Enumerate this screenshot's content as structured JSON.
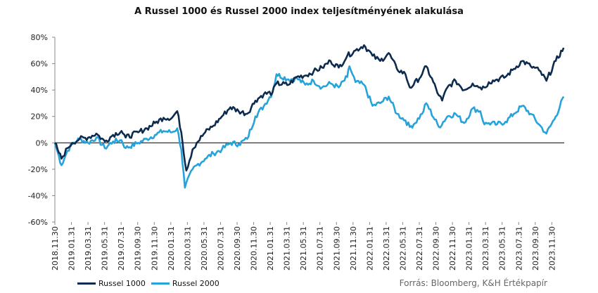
{
  "chart_data": {
    "type": "line",
    "title": "A Russel 1000 és Russel 2000 index teljesítményének alakulása",
    "xlabel": "",
    "ylabel": "",
    "ylim": [
      -60,
      80
    ],
    "yticks": [
      -60,
      -40,
      -20,
      0,
      20,
      40,
      60,
      80
    ],
    "ytick_labels": [
      "-60%",
      "-40%",
      "-20%",
      "0%",
      "20%",
      "40%",
      "60%",
      "80%"
    ],
    "xlim": [
      "2018-11-30",
      "2023-12-31"
    ],
    "x_tick_labels": [
      "2018.11.30",
      "2019.01.31",
      "2019.03.31",
      "2019.05.31",
      "2019.07.31",
      "2019.09.30",
      "2019.11.30",
      "2020.01.31",
      "2020.03.31",
      "2020.05.31",
      "2020.07.31",
      "2020.09.30",
      "2020.11.30",
      "2021.01.31",
      "2021.03.31",
      "2021.05.31",
      "2021.07.31",
      "2021.09.30",
      "2021.11.30",
      "2022.01.31",
      "2022.03.31",
      "2022.05.31",
      "2022.07.31",
      "2022.09.30",
      "2022.11.30",
      "2023.01.31",
      "2023.03.31",
      "2023.05.31",
      "2023.07.31",
      "2023.09.30",
      "2023.11.30"
    ],
    "grid": false,
    "legend_position": "bottom-left",
    "source": "Forrás: Bloomberg, K&H Értékpapír",
    "series": [
      {
        "name": "Russel 1000",
        "color": "#0d2b4e",
        "points": [
          [
            "2018-11-30",
            0
          ],
          [
            "2018-12-10",
            -5
          ],
          [
            "2018-12-24",
            -12
          ],
          [
            "2019-01-15",
            -4
          ],
          [
            "2019-02-01",
            0
          ],
          [
            "2019-02-28",
            3
          ],
          [
            "2019-03-31",
            4
          ],
          [
            "2019-04-30",
            7
          ],
          [
            "2019-05-31",
            1
          ],
          [
            "2019-06-30",
            6
          ],
          [
            "2019-07-31",
            9
          ],
          [
            "2019-08-15",
            4
          ],
          [
            "2019-09-30",
            8
          ],
          [
            "2019-10-31",
            11
          ],
          [
            "2019-11-30",
            15
          ],
          [
            "2019-12-31",
            19
          ],
          [
            "2020-01-31",
            19
          ],
          [
            "2020-02-19",
            24
          ],
          [
            "2020-03-05",
            8
          ],
          [
            "2020-03-23",
            -21
          ],
          [
            "2020-04-15",
            -5
          ],
          [
            "2020-04-30",
            0
          ],
          [
            "2020-05-31",
            8
          ],
          [
            "2020-06-30",
            13
          ],
          [
            "2020-07-31",
            20
          ],
          [
            "2020-08-31",
            27
          ],
          [
            "2020-09-30",
            24
          ],
          [
            "2020-10-31",
            22
          ],
          [
            "2020-11-30",
            32
          ],
          [
            "2020-12-31",
            37
          ],
          [
            "2021-01-31",
            38
          ],
          [
            "2021-02-15",
            45
          ],
          [
            "2021-03-31",
            44
          ],
          [
            "2021-04-30",
            50
          ],
          [
            "2021-05-31",
            51
          ],
          [
            "2021-06-30",
            54
          ],
          [
            "2021-07-31",
            57
          ],
          [
            "2021-08-31",
            62
          ],
          [
            "2021-09-30",
            57
          ],
          [
            "2021-10-31",
            66
          ],
          [
            "2021-11-30",
            70
          ],
          [
            "2021-12-31",
            74
          ],
          [
            "2022-01-31",
            66
          ],
          [
            "2022-02-28",
            62
          ],
          [
            "2022-03-31",
            68
          ],
          [
            "2022-04-30",
            56
          ],
          [
            "2022-05-31",
            52
          ],
          [
            "2022-06-16",
            42
          ],
          [
            "2022-06-30",
            44
          ],
          [
            "2022-07-31",
            52
          ],
          [
            "2022-08-15",
            58
          ],
          [
            "2022-09-30",
            36
          ],
          [
            "2022-10-12",
            32
          ],
          [
            "2022-10-31",
            42
          ],
          [
            "2022-11-30",
            47
          ],
          [
            "2022-12-31",
            40
          ],
          [
            "2023-01-31",
            45
          ],
          [
            "2023-02-28",
            42
          ],
          [
            "2023-03-15",
            42
          ],
          [
            "2023-03-31",
            46
          ],
          [
            "2023-04-30",
            48
          ],
          [
            "2023-05-31",
            50
          ],
          [
            "2023-06-30",
            56
          ],
          [
            "2023-07-31",
            62
          ],
          [
            "2023-08-31",
            58
          ],
          [
            "2023-09-30",
            55
          ],
          [
            "2023-10-27",
            47
          ],
          [
            "2023-11-30",
            62
          ],
          [
            "2023-12-29",
            72
          ]
        ]
      },
      {
        "name": "Russel 2000",
        "color": "#27a3d9",
        "points": [
          [
            "2018-11-30",
            0
          ],
          [
            "2018-12-10",
            -7
          ],
          [
            "2018-12-24",
            -17
          ],
          [
            "2019-01-15",
            -6
          ],
          [
            "2019-02-01",
            -1
          ],
          [
            "2019-02-28",
            3
          ],
          [
            "2019-03-31",
            0
          ],
          [
            "2019-04-30",
            4
          ],
          [
            "2019-05-31",
            -4
          ],
          [
            "2019-06-30",
            1
          ],
          [
            "2019-07-31",
            2
          ],
          [
            "2019-08-15",
            -4
          ],
          [
            "2019-09-30",
            0
          ],
          [
            "2019-10-31",
            3
          ],
          [
            "2019-11-30",
            6
          ],
          [
            "2019-12-31",
            9
          ],
          [
            "2020-01-31",
            8
          ],
          [
            "2020-02-19",
            11
          ],
          [
            "2020-03-05",
            -5
          ],
          [
            "2020-03-18",
            -34
          ],
          [
            "2020-04-15",
            -20
          ],
          [
            "2020-04-30",
            -17
          ],
          [
            "2020-05-31",
            -12
          ],
          [
            "2020-06-30",
            -8
          ],
          [
            "2020-07-31",
            -5
          ],
          [
            "2020-08-31",
            0
          ],
          [
            "2020-09-30",
            -1
          ],
          [
            "2020-10-31",
            3
          ],
          [
            "2020-11-30",
            20
          ],
          [
            "2020-12-31",
            28
          ],
          [
            "2021-01-31",
            38
          ],
          [
            "2021-02-15",
            52
          ],
          [
            "2021-03-31",
            48
          ],
          [
            "2021-04-30",
            49
          ],
          [
            "2021-05-31",
            44
          ],
          [
            "2021-06-30",
            47
          ],
          [
            "2021-07-31",
            42
          ],
          [
            "2021-08-31",
            45
          ],
          [
            "2021-09-30",
            42
          ],
          [
            "2021-10-31",
            50
          ],
          [
            "2021-11-08",
            58
          ],
          [
            "2021-11-30",
            46
          ],
          [
            "2021-12-31",
            44
          ],
          [
            "2022-01-31",
            28
          ],
          [
            "2022-02-28",
            30
          ],
          [
            "2022-03-31",
            35
          ],
          [
            "2022-04-30",
            22
          ],
          [
            "2022-05-31",
            17
          ],
          [
            "2022-06-16",
            12
          ],
          [
            "2022-06-30",
            14
          ],
          [
            "2022-07-31",
            22
          ],
          [
            "2022-08-15",
            30
          ],
          [
            "2022-09-30",
            12
          ],
          [
            "2022-10-31",
            20
          ],
          [
            "2022-11-30",
            22
          ],
          [
            "2022-12-31",
            15
          ],
          [
            "2023-01-31",
            26
          ],
          [
            "2023-02-28",
            24
          ],
          [
            "2023-03-15",
            14
          ],
          [
            "2023-03-31",
            15
          ],
          [
            "2023-04-30",
            14
          ],
          [
            "2023-05-31",
            16
          ],
          [
            "2023-06-30",
            22
          ],
          [
            "2023-07-31",
            28
          ],
          [
            "2023-08-31",
            22
          ],
          [
            "2023-09-30",
            14
          ],
          [
            "2023-10-27",
            7
          ],
          [
            "2023-11-30",
            20
          ],
          [
            "2023-12-29",
            35
          ]
        ]
      }
    ]
  }
}
